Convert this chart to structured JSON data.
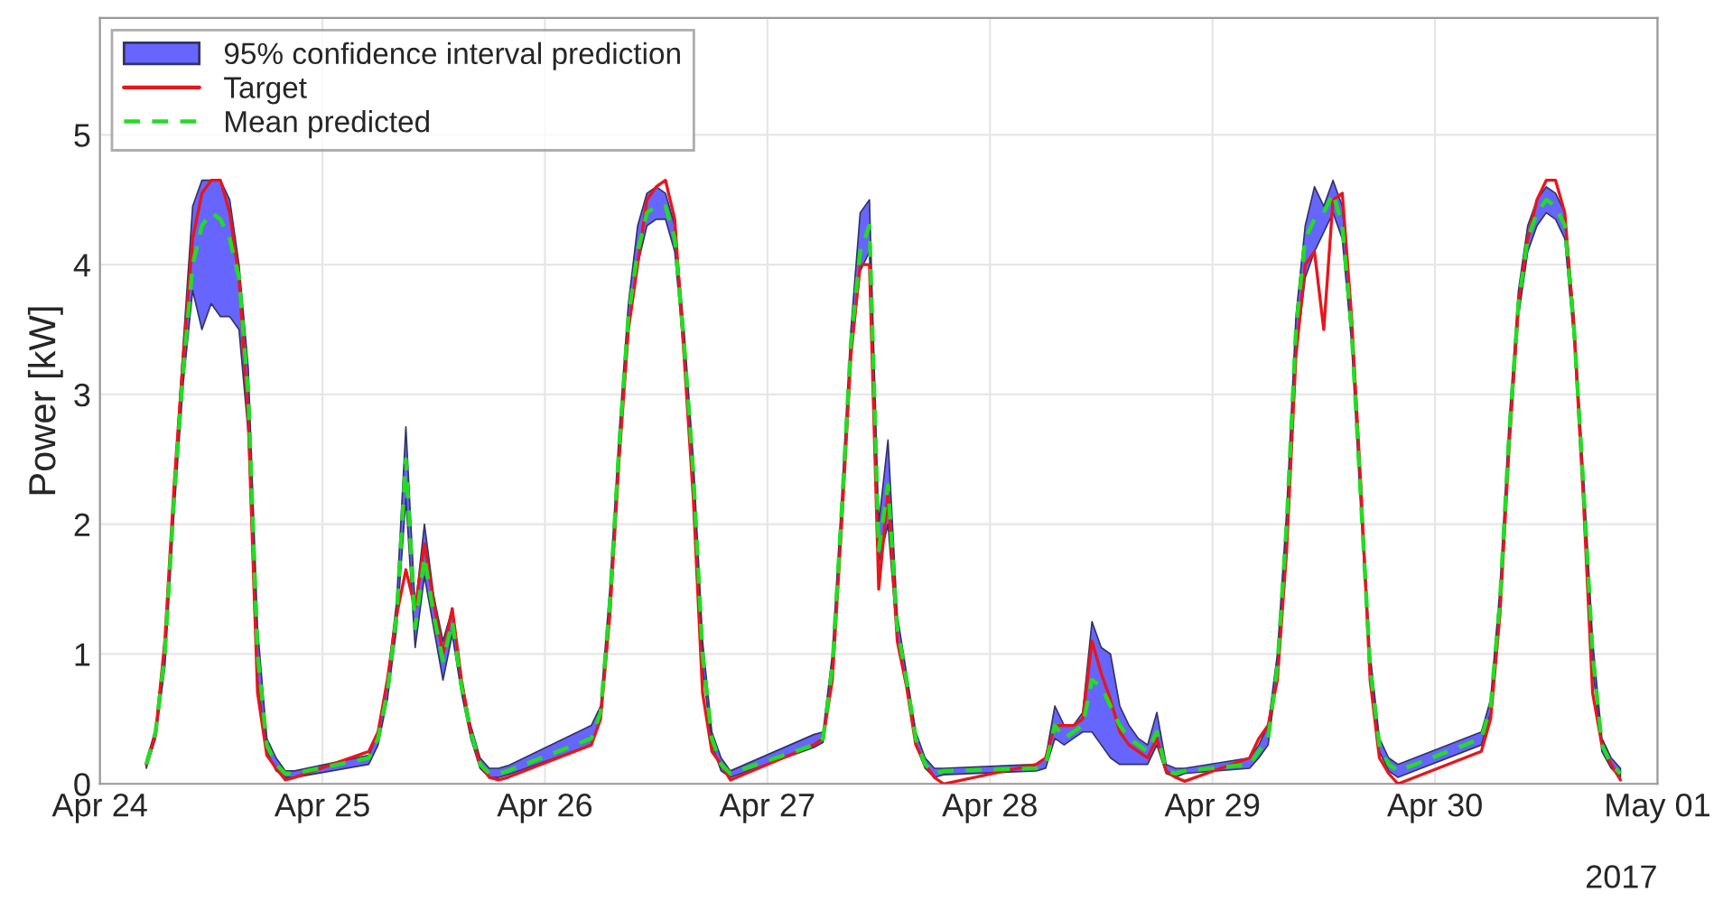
{
  "chart_data": {
    "type": "line",
    "ylabel": "Power [kW]",
    "x": [
      "2017-04-24T05:00",
      "2017-04-24T06:00",
      "2017-04-24T07:00",
      "2017-04-24T08:00",
      "2017-04-24T09:00",
      "2017-04-24T10:00",
      "2017-04-24T11:00",
      "2017-04-24T12:00",
      "2017-04-24T13:00",
      "2017-04-24T14:00",
      "2017-04-24T15:00",
      "2017-04-24T16:00",
      "2017-04-24T17:00",
      "2017-04-24T18:00",
      "2017-04-24T19:00",
      "2017-04-24T20:00",
      "2017-04-24T21:00",
      "2017-04-25T05:00",
      "2017-04-25T06:00",
      "2017-04-25T07:00",
      "2017-04-25T08:00",
      "2017-04-25T09:00",
      "2017-04-25T10:00",
      "2017-04-25T11:00",
      "2017-04-25T12:00",
      "2017-04-25T13:00",
      "2017-04-25T14:00",
      "2017-04-25T15:00",
      "2017-04-25T16:00",
      "2017-04-25T17:00",
      "2017-04-25T18:00",
      "2017-04-25T19:00",
      "2017-04-25T20:00",
      "2017-04-26T05:00",
      "2017-04-26T06:00",
      "2017-04-26T07:00",
      "2017-04-26T08:00",
      "2017-04-26T09:00",
      "2017-04-26T10:00",
      "2017-04-26T11:00",
      "2017-04-26T12:00",
      "2017-04-26T13:00",
      "2017-04-26T14:00",
      "2017-04-26T15:00",
      "2017-04-26T16:00",
      "2017-04-26T17:00",
      "2017-04-26T18:00",
      "2017-04-26T19:00",
      "2017-04-26T20:00",
      "2017-04-27T05:00",
      "2017-04-27T06:00",
      "2017-04-27T07:00",
      "2017-04-27T08:00",
      "2017-04-27T09:00",
      "2017-04-27T10:00",
      "2017-04-27T11:00",
      "2017-04-27T12:00",
      "2017-04-27T13:00",
      "2017-04-27T14:00",
      "2017-04-27T15:00",
      "2017-04-27T16:00",
      "2017-04-27T17:00",
      "2017-04-27T18:00",
      "2017-04-27T19:00",
      "2017-04-28T05:00",
      "2017-04-28T06:00",
      "2017-04-28T07:00",
      "2017-04-28T08:00",
      "2017-04-28T09:00",
      "2017-04-28T10:00",
      "2017-04-28T11:00",
      "2017-04-28T12:00",
      "2017-04-28T13:00",
      "2017-04-28T14:00",
      "2017-04-28T15:00",
      "2017-04-28T16:00",
      "2017-04-28T17:00",
      "2017-04-28T18:00",
      "2017-04-28T19:00",
      "2017-04-28T20:00",
      "2017-04-28T21:00",
      "2017-04-29T04:00",
      "2017-04-29T05:00",
      "2017-04-29T06:00",
      "2017-04-29T07:00",
      "2017-04-29T08:00",
      "2017-04-29T09:00",
      "2017-04-29T10:00",
      "2017-04-29T11:00",
      "2017-04-29T12:00",
      "2017-04-29T13:00",
      "2017-04-29T14:00",
      "2017-04-29T15:00",
      "2017-04-29T16:00",
      "2017-04-29T17:00",
      "2017-04-29T18:00",
      "2017-04-29T19:00",
      "2017-04-29T20:00",
      "2017-04-30T05:00",
      "2017-04-30T06:00",
      "2017-04-30T07:00",
      "2017-04-30T08:00",
      "2017-04-30T09:00",
      "2017-04-30T10:00",
      "2017-04-30T11:00",
      "2017-04-30T12:00",
      "2017-04-30T13:00",
      "2017-04-30T14:00",
      "2017-04-30T15:00",
      "2017-04-30T16:00",
      "2017-04-30T17:00",
      "2017-04-30T18:00",
      "2017-04-30T19:00",
      "2017-04-30T20:00"
    ],
    "series": [
      {
        "name": "95% confidence interval prediction",
        "type": "area",
        "color": "#6666ff",
        "values": [
          null,
          null,
          null,
          null,
          null,
          null,
          null,
          null,
          null,
          null,
          null,
          null,
          null,
          null,
          null,
          null,
          null,
          null,
          null,
          null,
          null,
          null,
          null,
          null,
          null,
          null,
          null,
          null,
          null,
          null,
          null,
          null,
          null,
          null,
          null,
          null,
          null,
          null,
          null,
          null,
          null,
          null,
          null,
          null,
          null,
          null,
          null,
          null,
          null,
          null,
          null,
          null,
          null,
          null,
          null,
          null,
          null,
          null,
          null,
          null,
          null,
          null,
          null,
          null,
          null,
          null,
          null,
          null,
          null,
          null,
          null,
          null,
          null,
          null,
          null,
          null,
          null,
          null,
          null,
          null,
          null,
          null,
          null,
          null,
          null,
          null,
          null,
          null,
          null,
          null,
          null,
          null,
          null,
          null,
          null,
          null,
          null,
          null,
          null,
          null,
          null,
          null,
          null,
          null,
          null,
          null,
          null,
          null,
          null,
          null,
          null,
          null,
          null,
          null
        ],
        "lower": [
          0.12,
          0.35,
          0.9,
          2.1,
          3.1,
          3.8,
          3.5,
          3.7,
          3.6,
          3.6,
          3.5,
          2.7,
          0.8,
          0.25,
          0.1,
          0.05,
          0.05,
          0.15,
          0.3,
          0.65,
          1.2,
          2.2,
          1.05,
          1.6,
          1.2,
          0.8,
          1.15,
          0.7,
          0.35,
          0.12,
          0.05,
          0.05,
          0.07,
          0.3,
          0.5,
          1.3,
          2.5,
          3.5,
          4.0,
          4.3,
          4.35,
          4.35,
          4.1,
          3.3,
          2.2,
          0.9,
          0.3,
          0.1,
          0.05,
          0.28,
          0.32,
          0.85,
          2.0,
          3.3,
          3.95,
          4.1,
          1.7,
          2.0,
          1.1,
          0.75,
          0.3,
          0.12,
          0.05,
          0.07,
          0.1,
          0.12,
          0.35,
          0.3,
          0.35,
          0.4,
          0.4,
          0.3,
          0.2,
          0.15,
          0.15,
          0.15,
          0.15,
          0.3,
          0.08,
          0.05,
          0.08,
          0.12,
          0.2,
          0.3,
          0.85,
          1.9,
          3.3,
          3.9,
          4.1,
          4.25,
          4.4,
          4.2,
          3.4,
          2.1,
          0.85,
          0.25,
          0.1,
          0.05,
          0.3,
          0.55,
          1.3,
          2.6,
          3.6,
          4.1,
          4.3,
          4.4,
          4.35,
          4.2,
          3.4,
          2.2,
          0.9,
          0.25,
          0.12,
          0.05
        ],
        "upper": [
          0.18,
          0.42,
          1.1,
          2.3,
          3.4,
          4.45,
          4.65,
          4.65,
          4.65,
          4.5,
          4.0,
          3.2,
          1.2,
          0.35,
          0.2,
          0.1,
          0.1,
          0.22,
          0.4,
          0.8,
          1.4,
          2.75,
          1.35,
          2.0,
          1.45,
          1.1,
          1.35,
          0.8,
          0.45,
          0.2,
          0.12,
          0.12,
          0.14,
          0.45,
          0.6,
          1.5,
          2.7,
          3.7,
          4.3,
          4.55,
          4.6,
          4.55,
          4.3,
          3.5,
          2.5,
          1.1,
          0.4,
          0.2,
          0.1,
          0.38,
          0.4,
          1.0,
          2.2,
          3.5,
          4.4,
          4.5,
          2.0,
          2.65,
          1.3,
          0.85,
          0.4,
          0.2,
          0.12,
          0.12,
          0.15,
          0.2,
          0.6,
          0.45,
          0.45,
          0.55,
          1.25,
          1.05,
          1.0,
          0.6,
          0.45,
          0.35,
          0.3,
          0.55,
          0.15,
          0.12,
          0.12,
          0.2,
          0.3,
          0.45,
          1.0,
          2.1,
          3.6,
          4.3,
          4.6,
          4.45,
          4.65,
          4.45,
          3.6,
          2.3,
          1.0,
          0.35,
          0.2,
          0.15,
          0.4,
          0.65,
          1.5,
          2.8,
          3.8,
          4.3,
          4.5,
          4.6,
          4.55,
          4.4,
          3.6,
          2.4,
          1.1,
          0.35,
          0.2,
          0.12
        ]
      },
      {
        "name": "Target",
        "color": "#e8161b",
        "line_style": "solid",
        "values": [
          0.15,
          0.38,
          1.1,
          2.3,
          3.3,
          4.2,
          4.55,
          4.65,
          4.65,
          4.4,
          3.9,
          2.8,
          0.7,
          0.22,
          0.12,
          0.03,
          0.05,
          0.25,
          0.4,
          0.8,
          1.3,
          1.65,
          1.35,
          1.85,
          1.4,
          1.0,
          1.35,
          0.8,
          0.4,
          0.15,
          0.05,
          0.03,
          0.05,
          0.3,
          0.5,
          1.3,
          2.5,
          3.5,
          4.0,
          4.5,
          4.6,
          4.65,
          4.35,
          3.3,
          2.2,
          0.7,
          0.25,
          0.15,
          0.03,
          0.3,
          0.35,
          0.8,
          2.0,
          3.3,
          4.0,
          4.0,
          1.5,
          2.25,
          1.1,
          0.75,
          0.3,
          0.15,
          0.05,
          0.0,
          0.15,
          0.2,
          0.45,
          0.45,
          0.45,
          0.5,
          1.1,
          0.85,
          0.65,
          0.4,
          0.3,
          0.25,
          0.2,
          0.35,
          0.1,
          0.05,
          0.02,
          0.2,
          0.35,
          0.45,
          0.8,
          1.8,
          3.3,
          4.0,
          4.1,
          3.5,
          4.5,
          4.55,
          3.6,
          2.3,
          0.8,
          0.2,
          0.08,
          0.0,
          0.25,
          0.5,
          1.3,
          2.6,
          3.7,
          4.2,
          4.5,
          4.65,
          4.65,
          4.4,
          3.5,
          2.2,
          0.7,
          0.3,
          0.15,
          0.03
        ]
      },
      {
        "name": "Mean predicted",
        "color": "#22dd22",
        "line_style": "dashed",
        "values": [
          0.15,
          0.4,
          1.0,
          2.2,
          3.2,
          4.0,
          4.3,
          4.4,
          4.35,
          4.2,
          3.9,
          3.0,
          1.0,
          0.3,
          0.15,
          0.08,
          0.08,
          0.2,
          0.35,
          0.7,
          1.3,
          2.5,
          1.2,
          1.75,
          1.3,
          0.95,
          1.25,
          0.75,
          0.4,
          0.15,
          0.08,
          0.08,
          0.1,
          0.35,
          0.55,
          1.4,
          2.6,
          3.6,
          4.1,
          4.4,
          4.45,
          4.45,
          4.2,
          3.4,
          2.4,
          1.0,
          0.35,
          0.15,
          0.08,
          0.3,
          0.35,
          0.9,
          2.1,
          3.4,
          4.1,
          4.3,
          1.8,
          2.3,
          1.2,
          0.8,
          0.35,
          0.15,
          0.08,
          0.1,
          0.12,
          0.15,
          0.45,
          0.35,
          0.4,
          0.45,
          0.8,
          0.75,
          0.6,
          0.45,
          0.35,
          0.3,
          0.25,
          0.4,
          0.1,
          0.08,
          0.1,
          0.15,
          0.25,
          0.35,
          0.9,
          2.0,
          3.5,
          4.2,
          4.35,
          4.4,
          4.55,
          4.3,
          3.5,
          2.2,
          0.9,
          0.3,
          0.15,
          0.1,
          0.35,
          0.6,
          1.4,
          2.7,
          3.7,
          4.2,
          4.4,
          4.5,
          4.45,
          4.3,
          3.5,
          2.3,
          1.0,
          0.3,
          0.15,
          0.08
        ]
      }
    ],
    "xlim": [
      "2017-04-24",
      "2017-05-01"
    ],
    "xticks": [
      {
        "value": "2017-04-24",
        "label": "Apr 24"
      },
      {
        "value": "2017-04-25",
        "label": "Apr 25"
      },
      {
        "value": "2017-04-26",
        "label": "Apr 26"
      },
      {
        "value": "2017-04-27",
        "label": "Apr 27"
      },
      {
        "value": "2017-04-28",
        "label": "Apr 28"
      },
      {
        "value": "2017-04-29",
        "label": "Apr 29"
      },
      {
        "value": "2017-04-30",
        "label": "Apr 30"
      },
      {
        "value": "2017-05-01",
        "label": "May 01"
      }
    ],
    "ylim": [
      0,
      5.9
    ],
    "yticks": [
      0,
      1,
      2,
      3,
      4,
      5
    ],
    "annotations": [
      "2017"
    ],
    "grid": true,
    "legend": "top left"
  }
}
